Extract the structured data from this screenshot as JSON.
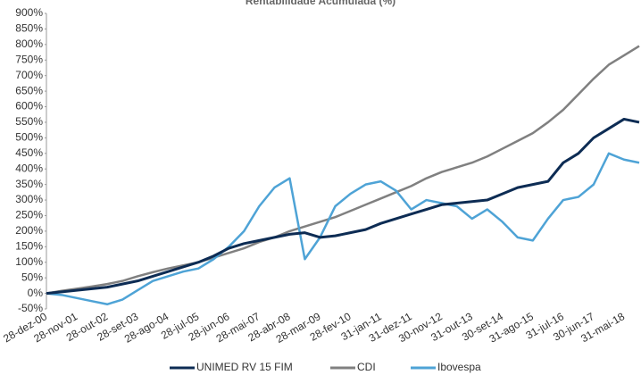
{
  "chart_data": {
    "type": "line",
    "title": "Rentabilidade Acumulada (%)",
    "categories": [
      "28-dez-00",
      null,
      "28-nov-01",
      null,
      "28-out-02",
      null,
      "28-set-03",
      null,
      "28-ago-04",
      null,
      "28-jul-05",
      null,
      "28-jun-06",
      null,
      "28-mai-07",
      null,
      "28-abr-08",
      null,
      "28-mar-09",
      null,
      "28-fev-10",
      null,
      "31-jan-11",
      null,
      "31-dez-11",
      null,
      "30-nov-12",
      null,
      "31-out-13",
      null,
      "30-set-14",
      null,
      "31-ago-15",
      null,
      "31-jul-16",
      null,
      "30-jun-17",
      null,
      "31-mai-18",
      null
    ],
    "series": [
      {
        "name": "UNIMED RV 15 FIM",
        "color": "#0d2c54",
        "values": [
          0,
          5,
          10,
          15,
          20,
          30,
          40,
          55,
          70,
          85,
          100,
          120,
          145,
          160,
          170,
          180,
          190,
          195,
          180,
          185,
          195,
          205,
          225,
          240,
          255,
          270,
          285,
          290,
          295,
          300,
          320,
          340,
          350,
          360,
          420,
          450,
          500,
          530,
          560,
          550
        ]
      },
      {
        "name": "CDI",
        "color": "#808080",
        "values": [
          0,
          8,
          15,
          22,
          30,
          40,
          55,
          68,
          80,
          90,
          100,
          115,
          130,
          145,
          165,
          180,
          200,
          215,
          230,
          245,
          265,
          285,
          305,
          325,
          345,
          370,
          390,
          405,
          420,
          440,
          465,
          490,
          515,
          550,
          590,
          640,
          690,
          735,
          765,
          795
        ]
      },
      {
        "name": "Ibovespa",
        "color": "#4ea3d6",
        "values": [
          0,
          -5,
          -15,
          -25,
          -35,
          -20,
          10,
          40,
          55,
          70,
          80,
          110,
          150,
          200,
          280,
          340,
          370,
          110,
          180,
          280,
          320,
          350,
          360,
          330,
          270,
          300,
          290,
          280,
          240,
          270,
          230,
          180,
          170,
          240,
          300,
          310,
          350,
          450,
          430,
          420
        ]
      }
    ],
    "ylim": [
      -50,
      900
    ],
    "yticks": [
      {
        "value": -50,
        "label": "-50%"
      },
      {
        "value": 0,
        "label": "0%"
      },
      {
        "value": 50,
        "label": "50%"
      },
      {
        "value": 100,
        "label": "100%"
      },
      {
        "value": 150,
        "label": "150%"
      },
      {
        "value": 200,
        "label": "200%"
      },
      {
        "value": 250,
        "label": "250%"
      },
      {
        "value": 300,
        "label": "300%"
      },
      {
        "value": 350,
        "label": "350%"
      },
      {
        "value": 400,
        "label": "400%"
      },
      {
        "value": 450,
        "label": "450%"
      },
      {
        "value": 500,
        "label": "500%"
      },
      {
        "value": 550,
        "label": "550%"
      },
      {
        "value": 600,
        "label": "600%"
      },
      {
        "value": 650,
        "label": "650%"
      },
      {
        "value": 700,
        "label": "700%"
      },
      {
        "value": 750,
        "label": "750%"
      },
      {
        "value": 800,
        "label": "800%"
      },
      {
        "value": 850,
        "label": "850%"
      },
      {
        "value": 900,
        "label": "900%"
      }
    ],
    "grid": false,
    "legend": "bottom"
  }
}
